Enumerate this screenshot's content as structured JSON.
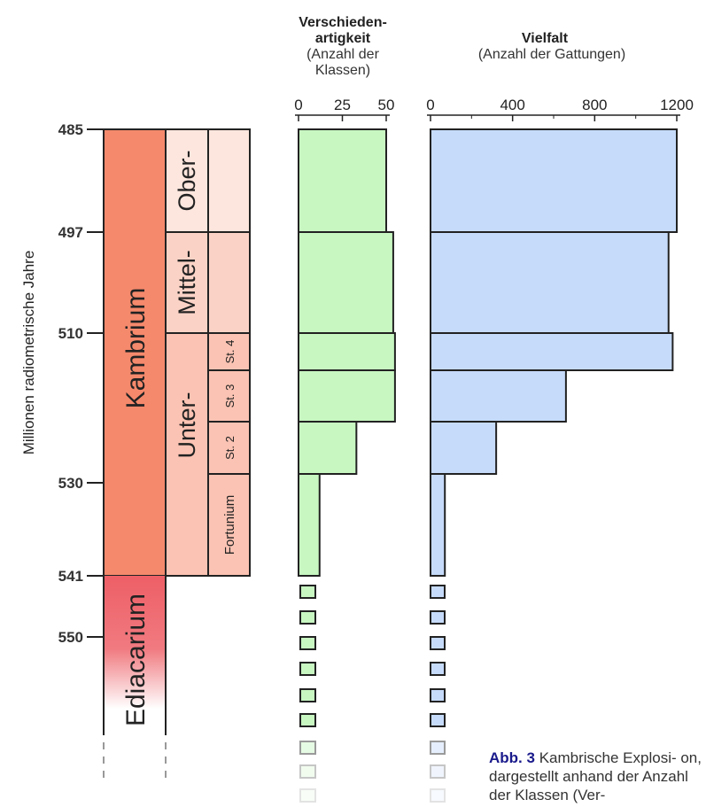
{
  "chart_data": [
    {
      "type": "table",
      "ylabel": "Millionen radiometrische Jahre",
      "y_ticks": [
        485,
        497,
        510,
        530,
        541,
        550
      ],
      "periods": [
        {
          "name": "Kambrium",
          "from": 485,
          "to": 541,
          "color": "#f5896c"
        },
        {
          "name": "Ediacarium",
          "from": 541,
          "to": 560,
          "color": "#ee5f66"
        }
      ],
      "series": [
        {
          "name": "Ober-",
          "from": 485,
          "to": 497,
          "color": "#fde6dd"
        },
        {
          "name": "Mittel-",
          "from": 497,
          "to": 510,
          "color": "#fbd3c6"
        },
        {
          "name": "Unter-",
          "from": 510,
          "to": 541,
          "color": "#fbc3b3"
        }
      ],
      "stages": [
        {
          "name": "St. 4",
          "from": 510,
          "to": 514.5
        },
        {
          "name": "St. 3",
          "from": 514.5,
          "to": 521
        },
        {
          "name": "St. 2",
          "from": 521,
          "to": 524
        },
        {
          "name": "Fortunium",
          "from": 524,
          "to": 541
        }
      ]
    },
    {
      "type": "bar",
      "title_lines": [
        "Verschieden-",
        "artigkeit"
      ],
      "subtitle_lines": [
        "(Anzahl der",
        "Klassen)"
      ],
      "xlim": [
        0,
        50
      ],
      "ticks": [
        0,
        25,
        50
      ],
      "color": "#c8f7c2",
      "bins": [
        {
          "from": 485,
          "to": 497,
          "value": 50
        },
        {
          "from": 497,
          "to": 510,
          "value": 54
        },
        {
          "from": 510,
          "to": 514.5,
          "value": 55
        },
        {
          "from": 514.5,
          "to": 521,
          "value": 55
        },
        {
          "from": 521,
          "to": 524,
          "value": 33
        },
        {
          "from": 524,
          "to": 541,
          "value": 12
        }
      ]
    },
    {
      "type": "bar",
      "title": "Vielfalt",
      "subtitle": "(Anzahl der Gattungen)",
      "xlim": [
        0,
        1200
      ],
      "ticks": [
        0,
        400,
        800,
        1200
      ],
      "minor_ticks": [
        200,
        600,
        1000
      ],
      "color": "#c6dbfa",
      "bins": [
        {
          "from": 485,
          "to": 497,
          "value": 1200
        },
        {
          "from": 497,
          "to": 510,
          "value": 1160
        },
        {
          "from": 510,
          "to": 514.5,
          "value": 1180
        },
        {
          "from": 514.5,
          "to": 521,
          "value": 660
        },
        {
          "from": 521,
          "to": 524,
          "value": 320
        },
        {
          "from": 524,
          "to": 541,
          "value": 70
        }
      ]
    }
  ],
  "caption": {
    "label": "Abb. 3",
    "text": "Kambrische Explosi- on, dargestellt anhand der Anzahl der Klassen (Ver-"
  }
}
